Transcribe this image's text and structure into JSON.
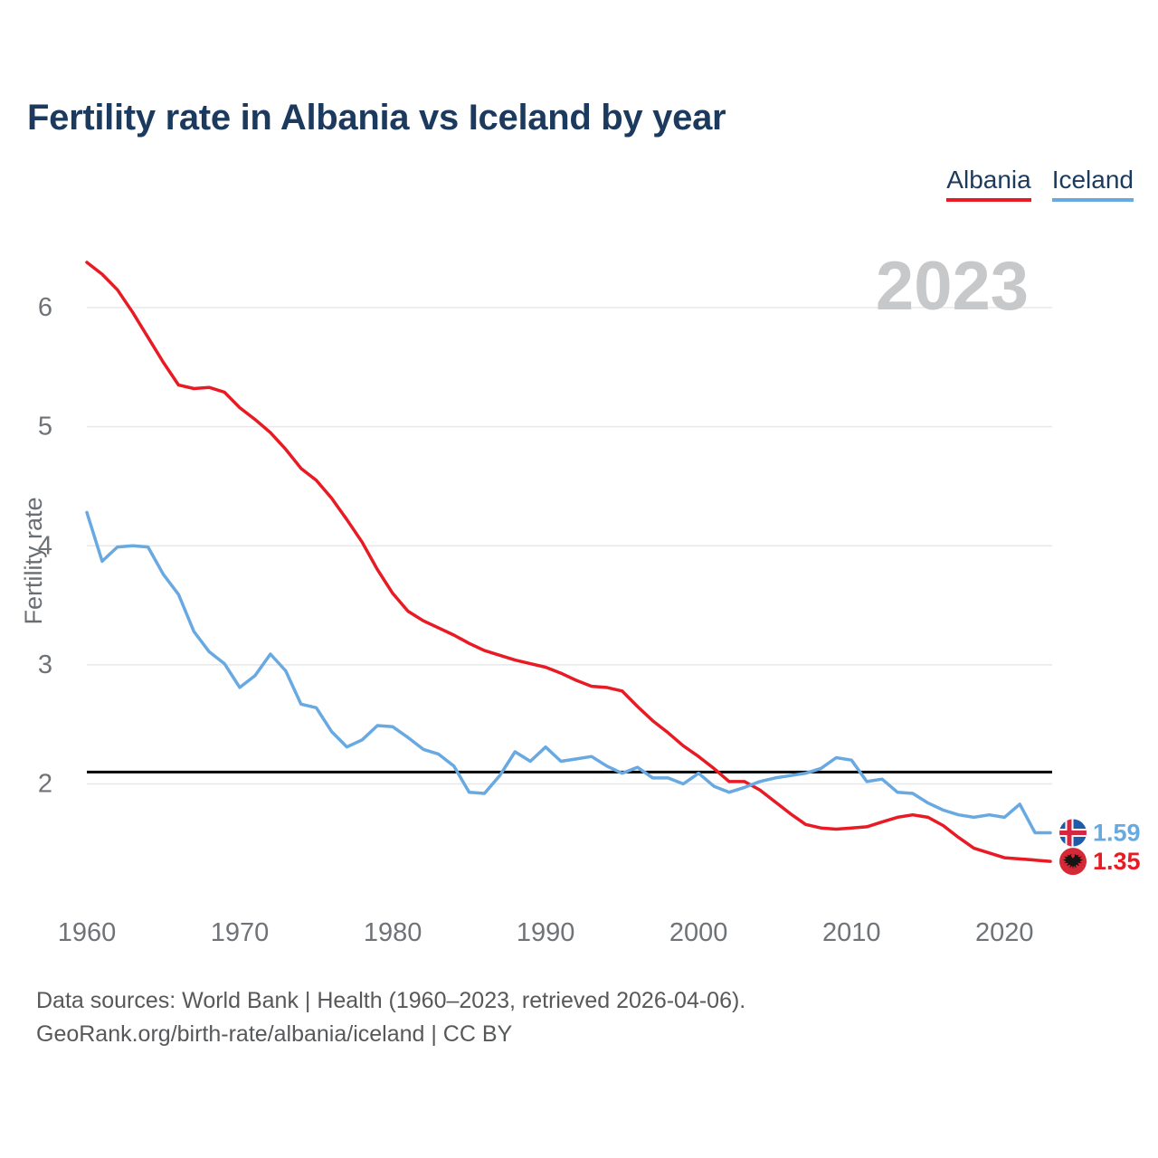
{
  "title": "Fertility rate in Albania vs Iceland by year",
  "watermark_year": "2023",
  "y_axis_title": "Fertility rate",
  "end_labels": {
    "iceland": "1.59",
    "albania": "1.35"
  },
  "footer": {
    "line1": "Data sources: World Bank | Health (1960–2023, retrieved 2026-04-06).",
    "line2": "GeoRank.org/birth-rate/albania/iceland | CC BY"
  },
  "colors": {
    "albania_line": "#e81a23",
    "iceland_line": "#68a9e2",
    "albania_flag_bg": "#d62936",
    "albania_flag_eagle": "#151515",
    "iceland_flag_bg": "#1f5ba8",
    "iceland_flag_cross_red": "#d62641",
    "iceland_flag_cross_white": "#ffffff",
    "title_text": "#1c3a5e",
    "tick_text": "#6f7377",
    "axis_title_text": "#6a6e72",
    "watermark_text": "#c6c8ca",
    "footer_text": "#57585a",
    "gridline": "#e8e8e8",
    "reference_line": "#000000"
  },
  "chart_data": {
    "type": "line",
    "title": "Fertility rate in Albania vs Iceland by year",
    "xlabel": "",
    "ylabel": "Fertility rate",
    "grid": true,
    "legend_position": "top-right",
    "x_ticks": [
      1960,
      1970,
      1980,
      1990,
      2000,
      2010,
      2020
    ],
    "y_ticks": [
      2,
      3,
      4,
      5,
      6
    ],
    "xlim": [
      1960,
      2023
    ],
    "ylim": [
      1.1,
      6.6
    ],
    "reference_line": {
      "value": 2.1,
      "color": "#000000"
    },
    "x": [
      1960,
      1961,
      1962,
      1963,
      1964,
      1965,
      1966,
      1967,
      1968,
      1969,
      1970,
      1971,
      1972,
      1973,
      1974,
      1975,
      1976,
      1977,
      1978,
      1979,
      1980,
      1981,
      1982,
      1983,
      1984,
      1985,
      1986,
      1987,
      1988,
      1989,
      1990,
      1991,
      1992,
      1993,
      1994,
      1995,
      1996,
      1997,
      1998,
      1999,
      2000,
      2001,
      2002,
      2003,
      2004,
      2005,
      2006,
      2007,
      2008,
      2009,
      2010,
      2011,
      2012,
      2013,
      2014,
      2015,
      2016,
      2017,
      2018,
      2019,
      2020,
      2021,
      2022,
      2023
    ],
    "series": [
      {
        "name": "Albania",
        "color": "#e81a23",
        "end_value": 1.35,
        "values": [
          6.38,
          6.28,
          6.15,
          5.96,
          5.75,
          5.54,
          5.35,
          5.32,
          5.33,
          5.29,
          5.16,
          5.06,
          4.95,
          4.81,
          4.65,
          4.55,
          4.4,
          4.22,
          4.03,
          3.8,
          3.6,
          3.45,
          3.37,
          3.31,
          3.25,
          3.18,
          3.12,
          3.08,
          3.04,
          3.01,
          2.98,
          2.93,
          2.87,
          2.82,
          2.81,
          2.78,
          2.65,
          2.53,
          2.43,
          2.32,
          2.23,
          2.13,
          2.02,
          2.02,
          1.95,
          1.85,
          1.75,
          1.66,
          1.63,
          1.62,
          1.63,
          1.64,
          1.68,
          1.72,
          1.74,
          1.72,
          1.65,
          1.55,
          1.46,
          1.42,
          1.38,
          1.37,
          1.36,
          1.35
        ]
      },
      {
        "name": "Iceland",
        "color": "#68a9e2",
        "end_value": 1.59,
        "values": [
          4.28,
          3.87,
          3.99,
          4.0,
          3.99,
          3.76,
          3.59,
          3.28,
          3.11,
          3.01,
          2.81,
          2.91,
          3.09,
          2.95,
          2.67,
          2.64,
          2.44,
          2.31,
          2.37,
          2.49,
          2.48,
          2.39,
          2.29,
          2.25,
          2.15,
          1.93,
          1.92,
          2.07,
          2.27,
          2.19,
          2.31,
          2.19,
          2.21,
          2.23,
          2.15,
          2.09,
          2.14,
          2.05,
          2.05,
          2.0,
          2.09,
          1.98,
          1.93,
          1.97,
          2.02,
          2.05,
          2.07,
          2.09,
          2.13,
          2.22,
          2.2,
          2.02,
          2.04,
          1.93,
          1.92,
          1.84,
          1.78,
          1.74,
          1.72,
          1.74,
          1.72,
          1.83,
          1.59,
          1.59
        ]
      }
    ]
  }
}
